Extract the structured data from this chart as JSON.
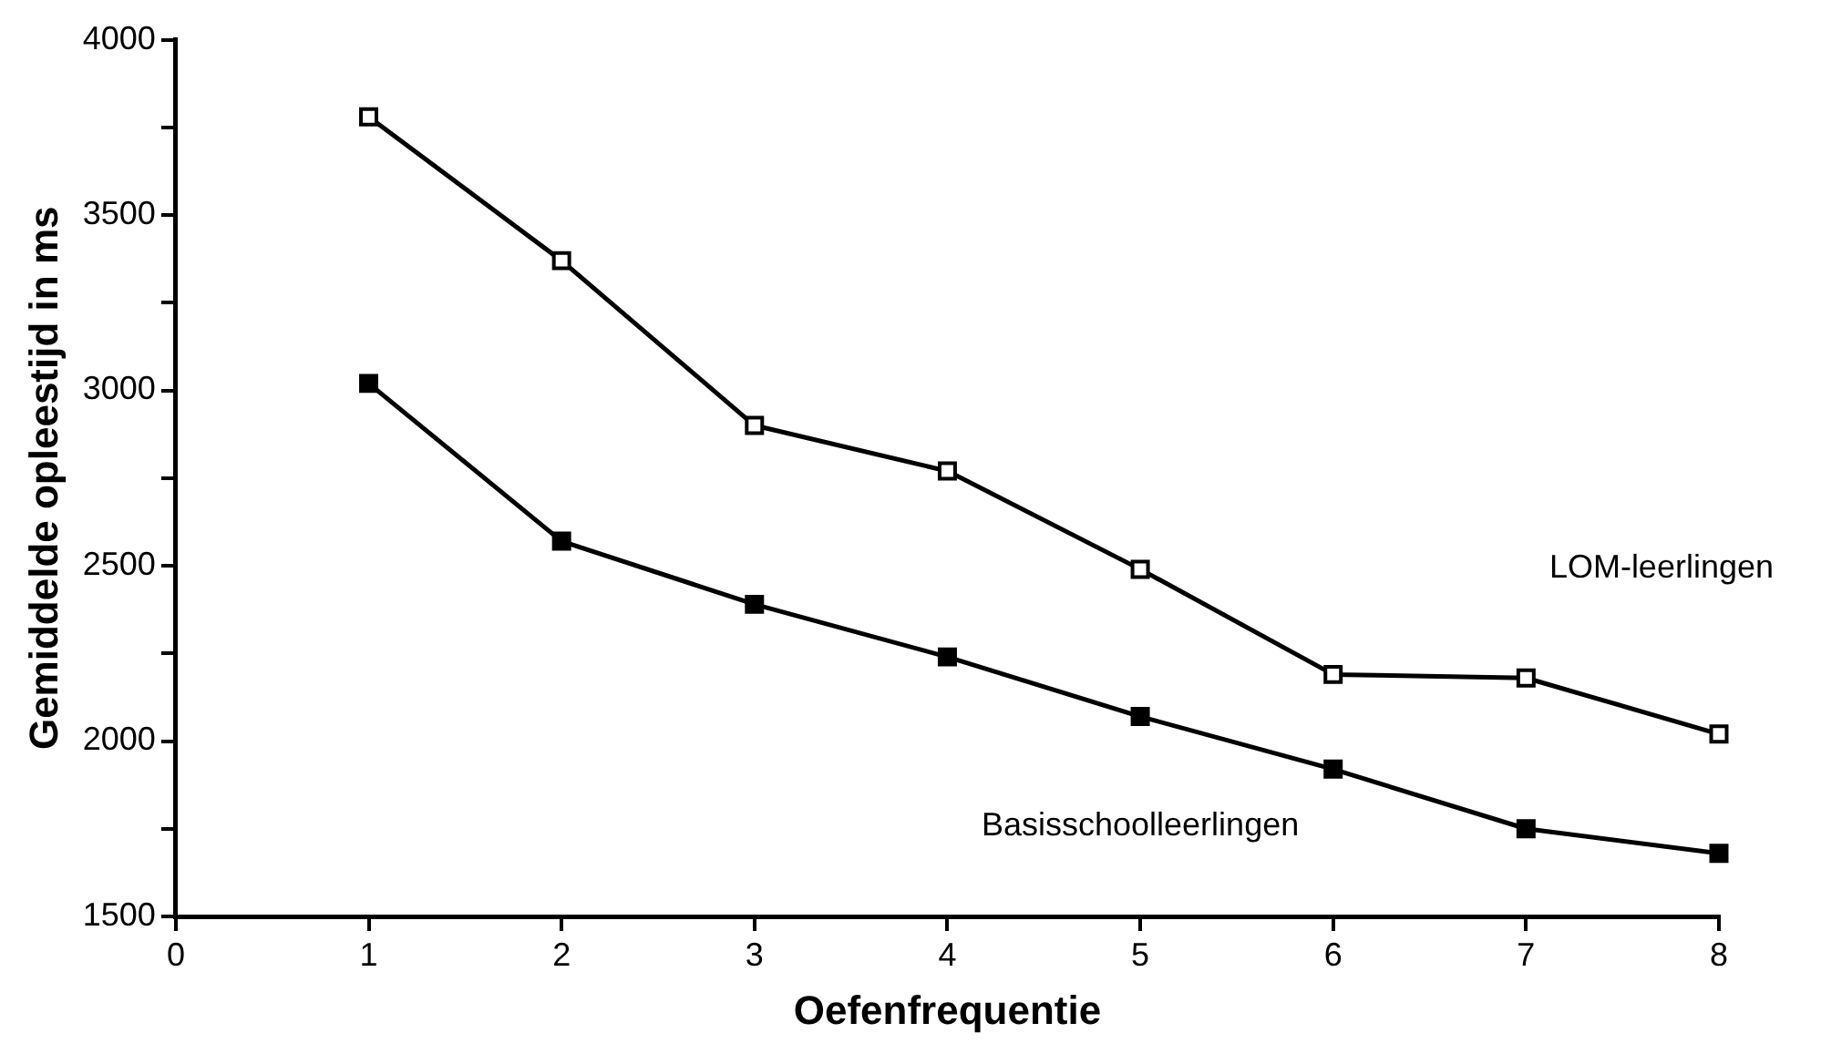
{
  "chart_data": {
    "type": "line",
    "xlabel": "Oefenfrequentie",
    "ylabel": "Gemiddelde opleestijd in ms",
    "x": [
      1,
      2,
      3,
      4,
      5,
      6,
      7,
      8
    ],
    "series": [
      {
        "name": "LOM-leerlingen",
        "color": "#000000",
        "values": [
          3780,
          3370,
          2900,
          2770,
          2490,
          2190,
          2180,
          2020
        ]
      },
      {
        "name": "Basisschoolleerlingen",
        "color": "#000000",
        "values": [
          3020,
          2570,
          2390,
          2240,
          2070,
          1920,
          1750,
          1680
        ]
      }
    ],
    "xlim": [
      0,
      8
    ],
    "xticks": [
      0,
      1,
      2,
      3,
      4,
      5,
      6,
      7,
      8
    ],
    "ylim": [
      1500,
      4000
    ],
    "yticks": [
      1500,
      {
        "value": 1750,
        "label": null
      },
      2000,
      {
        "value": 2250,
        "label": null
      },
      2500,
      {
        "value": 2750,
        "label": null
      },
      3000,
      {
        "value": 3250,
        "label": null
      },
      3500,
      {
        "value": 3750,
        "label": null
      },
      4000
    ],
    "grid": false,
    "legend": false,
    "marker": "square",
    "line_style": "solid"
  }
}
